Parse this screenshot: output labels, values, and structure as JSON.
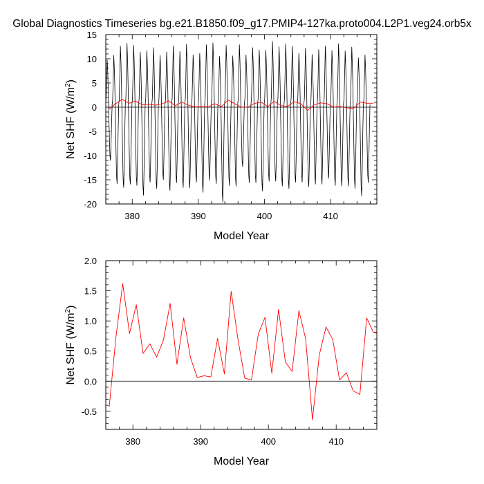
{
  "title": "Global Diagnostics Timeseries bg.e21.B1850.f09_g17.PMIP4-127ka.proto004.L2P1.veg24.orb5x",
  "colors": {
    "monthly": "#000000",
    "annual": "#ff0000",
    "zero_line": "#000000"
  },
  "chart_data": [
    {
      "type": "line",
      "xlabel": "Model Year",
      "ylabel": {
        "main": "Net SHF (W/m",
        "sup": "2",
        "tail": ")"
      },
      "xlim": [
        376,
        417
      ],
      "ylim": [
        -20,
        15
      ],
      "xticks": [
        380,
        390,
        400,
        410
      ],
      "yticks": [
        -20,
        -15,
        -10,
        -5,
        0,
        5,
        10,
        15
      ],
      "reference_line": 0,
      "series": [
        {
          "color": "#000000",
          "resolution": "monthly",
          "annual_minima": [
            -11.0,
            -15.8,
            -16.6,
            -15.9,
            -16.2,
            -18.2,
            -15.5,
            -16.8,
            -15.0,
            -17.2,
            -15.6,
            -16.6,
            -16.7,
            -15.5,
            -17.6,
            -15.1,
            -15.8,
            -19.6,
            -16.2,
            -16.3,
            -12.3,
            -15.6,
            -15.6,
            -17.3,
            -15.3,
            -15.3,
            -16.3,
            -16.8,
            -15.5,
            -15.5,
            -16.4,
            -15.9,
            -15.9,
            -14.7,
            -16.2,
            -16.3,
            -16.3,
            -16.8,
            -18.3,
            -15.6
          ],
          "annual_maxima": [
            9.8,
            10.7,
            12.6,
            13.2,
            12.8,
            11.4,
            11.7,
            12.3,
            10.7,
            11.4,
            12.7,
            11.5,
            13.0,
            10.8,
            11.1,
            12.9,
            13.3,
            10.5,
            12.8,
            10.6,
            12.9,
            10.8,
            12.3,
            11.8,
            11.8,
            13.6,
            12.5,
            13.1,
            12.6,
            11.1,
            12.2,
            10.9,
            11.9,
            12.6,
            11.7,
            13.1,
            11.6,
            12.4,
            10.2,
            10.8
          ]
        },
        {
          "color": "#ff0000",
          "resolution": "annual",
          "x": [
            376.5,
            377.5,
            378.5,
            379.5,
            380.5,
            381.5,
            382.5,
            383.5,
            384.5,
            385.5,
            386.5,
            387.5,
            388.5,
            389.5,
            390.5,
            391.5,
            392.5,
            393.5,
            394.5,
            395.5,
            396.5,
            397.5,
            398.5,
            399.5,
            400.5,
            401.5,
            402.5,
            403.5,
            404.5,
            405.5,
            406.5,
            407.5,
            408.5,
            409.5,
            410.5,
            411.5,
            412.5,
            413.5,
            414.5,
            415.5,
            416.5
          ],
          "y": [
            -0.43,
            0.73,
            1.62,
            0.79,
            1.27,
            0.46,
            0.62,
            0.4,
            0.68,
            1.29,
            0.28,
            1.05,
            0.39,
            0.06,
            0.09,
            0.07,
            0.71,
            0.12,
            1.49,
            0.7,
            0.05,
            0.02,
            0.78,
            1.06,
            0.13,
            1.19,
            0.32,
            0.16,
            1.17,
            0.7,
            -0.64,
            0.43,
            0.9,
            0.69,
            0.02,
            0.14,
            -0.16,
            -0.22,
            1.05,
            0.81,
            0.81
          ]
        }
      ]
    },
    {
      "type": "line",
      "xlabel": "Model Year",
      "ylabel": {
        "main": "Net SHF (W/m",
        "sup": "2",
        "tail": ")"
      },
      "xlim": [
        376,
        416
      ],
      "ylim": [
        -0.8,
        2.0
      ],
      "xticks": [
        380,
        390,
        400,
        410
      ],
      "yticks": [
        -0.5,
        0.0,
        0.5,
        1.0,
        1.5,
        2.0
      ],
      "ytick_labels": [
        "-0.5",
        "0.0",
        "0.5",
        "1.0",
        "1.5",
        "2.0"
      ],
      "reference_line": 0,
      "series": [
        {
          "color": "#ff0000",
          "resolution": "annual",
          "x": [
            376.5,
            377.5,
            378.5,
            379.5,
            380.5,
            381.5,
            382.5,
            383.5,
            384.5,
            385.5,
            386.5,
            387.5,
            388.5,
            389.5,
            390.5,
            391.5,
            392.5,
            393.5,
            394.5,
            395.5,
            396.5,
            397.5,
            398.5,
            399.5,
            400.5,
            401.5,
            402.5,
            403.5,
            404.5,
            405.5,
            406.5,
            407.5,
            408.5,
            409.5,
            410.5,
            411.5,
            412.5,
            413.5,
            414.5,
            415.5,
            416.5
          ],
          "y": [
            -0.43,
            0.73,
            1.62,
            0.79,
            1.27,
            0.46,
            0.62,
            0.4,
            0.68,
            1.29,
            0.28,
            1.05,
            0.39,
            0.06,
            0.09,
            0.07,
            0.71,
            0.12,
            1.49,
            0.7,
            0.05,
            0.02,
            0.78,
            1.06,
            0.13,
            1.19,
            0.32,
            0.16,
            1.17,
            0.7,
            -0.64,
            0.43,
            0.9,
            0.69,
            0.02,
            0.14,
            -0.16,
            -0.22,
            1.05,
            0.81,
            0.81
          ]
        }
      ]
    }
  ]
}
